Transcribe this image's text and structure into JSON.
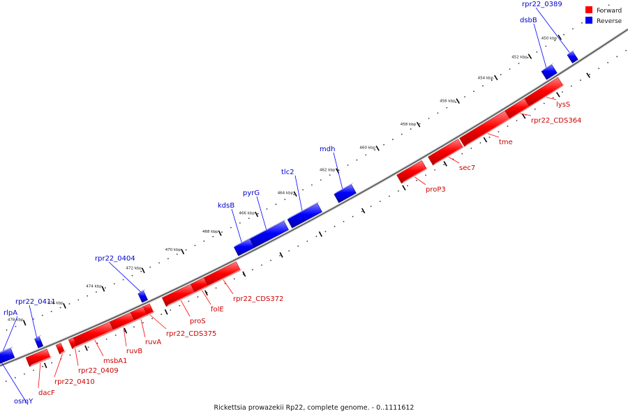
{
  "caption": "Rickettsia prowazekii Rp22, complete genome. - 0..1111612",
  "legend": [
    {
      "label": "Forward",
      "color": "#ff0000"
    },
    {
      "label": "Reverse",
      "color": "#0000ff"
    }
  ],
  "tick_labels": [
    "450 kbp",
    "452 kbp",
    "454 kbp",
    "456 kbp",
    "458 kbp",
    "460 kbp",
    "462 kbp",
    "464 kbp",
    "466 kbp",
    "468 kbp",
    "470 kbp",
    "472 kbp",
    "474 kbp",
    "476 kbp",
    "478 kbp"
  ],
  "genes": [
    {
      "name": "rpr22_0389",
      "strand": "reverse"
    },
    {
      "name": "dsbB",
      "strand": "reverse"
    },
    {
      "name": "mdh",
      "strand": "reverse"
    },
    {
      "name": "tlc2",
      "strand": "reverse"
    },
    {
      "name": "pyrG",
      "strand": "reverse"
    },
    {
      "name": "kdsB",
      "strand": "reverse"
    },
    {
      "name": "rpr22_0404",
      "strand": "reverse"
    },
    {
      "name": "rpr22_0411",
      "strand": "reverse"
    },
    {
      "name": "rlpA",
      "strand": "reverse"
    },
    {
      "name": "osmY",
      "strand": "reverse"
    },
    {
      "name": "lysS",
      "strand": "forward"
    },
    {
      "name": "rpr22_CDS364",
      "strand": "forward"
    },
    {
      "name": "tme",
      "strand": "forward"
    },
    {
      "name": "sec7",
      "strand": "forward"
    },
    {
      "name": "proP3",
      "strand": "forward"
    },
    {
      "name": "rpr22_CDS372",
      "strand": "forward"
    },
    {
      "name": "folE",
      "strand": "forward"
    },
    {
      "name": "proS",
      "strand": "forward"
    },
    {
      "name": "rpr22_CDS375",
      "strand": "forward"
    },
    {
      "name": "ruvA",
      "strand": "forward"
    },
    {
      "name": "ruvB",
      "strand": "forward"
    },
    {
      "name": "msbA1",
      "strand": "forward"
    },
    {
      "name": "rpr22_0409",
      "strand": "forward"
    },
    {
      "name": "rpr22_0410",
      "strand": "forward"
    },
    {
      "name": "dacF",
      "strand": "forward"
    }
  ]
}
